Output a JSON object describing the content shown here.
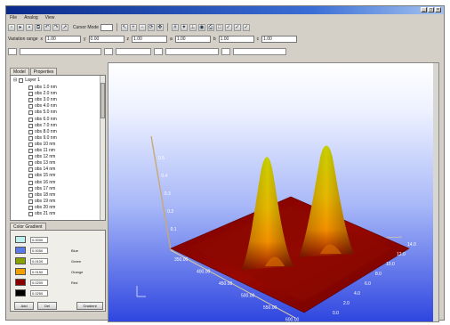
{
  "window": {
    "title": ""
  },
  "menu": [
    "File",
    "Analog",
    "View"
  ],
  "toolbar": {
    "label": "Cursor Mode"
  },
  "params": {
    "label": "Variation range",
    "fields": [
      "1.00",
      "0.00",
      "1.00",
      "1.00",
      "1.00",
      "1.00"
    ]
  },
  "tabs": [
    "Model",
    "Properties"
  ],
  "tree": {
    "root": "Layer 1",
    "items": [
      "obs 1.0 nm",
      "obs 2.0 nm",
      "obs 3.0 nm",
      "obs 4.0 nm",
      "obs 5.0 nm",
      "obs 6.0 nm",
      "obs 7.0 nm",
      "obs 8.0 nm",
      "obs 9.0 nm",
      "obs 10 nm",
      "obs 11 nm",
      "obs 12 nm",
      "obs 13 nm",
      "obs 14 nm",
      "obs 15 nm",
      "obs 16 nm",
      "obs 17 nm",
      "obs 18 nm",
      "obs 19 nm",
      "obs 20 nm",
      "obs 21 nm"
    ]
  },
  "legend": {
    "tab": "Color Gradient",
    "entries": [
      {
        "color": "#bfeeee",
        "value": "0.0000",
        "label": ""
      },
      {
        "color": "#5a7ae8",
        "value": "0.0050",
        "label": "Blue"
      },
      {
        "color": "#8aa000",
        "value": "0.0100",
        "label": "Green"
      },
      {
        "color": "#f0a000",
        "value": "0.0150",
        "label": "Orange"
      },
      {
        "color": "#8a0000",
        "value": "0.0200",
        "label": "Red"
      },
      {
        "color": "#000000",
        "value": "0.0250",
        "label": ""
      }
    ],
    "buttons": [
      "Add",
      "Del",
      "Gradient"
    ]
  },
  "plot": {
    "x_ticks": [
      "350.00",
      "400.00",
      "450.00",
      "500.00",
      "550.00",
      "600.00"
    ],
    "y_ticks": [
      "0.0",
      "2.0",
      "4.0",
      "6.0",
      "8.0",
      "10.0",
      "12.0",
      "14.0"
    ],
    "z_ticks": [
      "0.5",
      "0.4",
      "0.3",
      "0.2",
      "0.1"
    ],
    "colors": {
      "peak_top": "#c8d000",
      "peak_mid": "#f5a000",
      "base": "#8a0000"
    }
  }
}
